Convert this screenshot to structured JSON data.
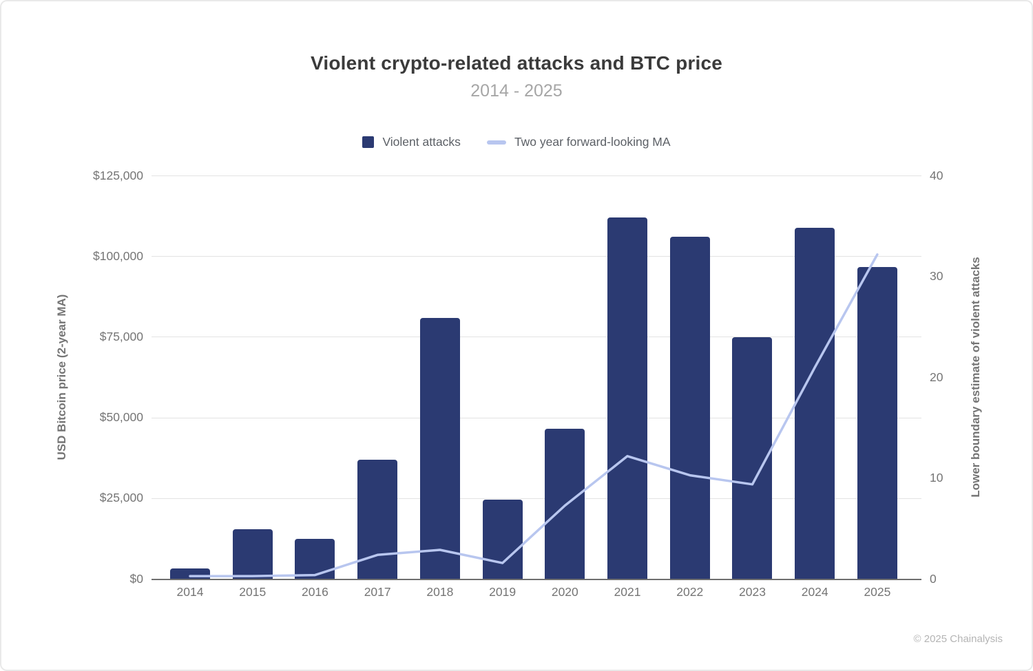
{
  "header": {
    "title": "Violent crypto-related attacks and BTC price",
    "subtitle": "2014 - 2025"
  },
  "legend": {
    "items": [
      {
        "label": "Violent attacks",
        "marker": "square",
        "color": "#2b3a72"
      },
      {
        "label": "Two year forward-looking MA",
        "marker": "line",
        "color": "#b8c6ef"
      }
    ]
  },
  "footer": {
    "copyright": "© 2025 Chainalysis"
  },
  "chart_data": {
    "type": "combo",
    "categories": [
      "2014",
      "2015",
      "2016",
      "2017",
      "2018",
      "2019",
      "2020",
      "2021",
      "2022",
      "2023",
      "2024",
      "2025"
    ],
    "series": [
      {
        "name": "Violent attacks",
        "type": "bar",
        "yaxis": "left",
        "color": "#2b3a72",
        "values": [
          3200,
          15400,
          12500,
          37000,
          81000,
          24600,
          46600,
          112200,
          106200,
          75000,
          109000,
          96800
        ]
      },
      {
        "name": "Two year forward-looking MA",
        "type": "line",
        "yaxis": "right",
        "color": "#b8c6ef",
        "values": [
          0.3,
          0.3,
          0.4,
          2.4,
          2.9,
          1.6,
          7.3,
          12.2,
          10.3,
          9.4,
          21,
          32.2
        ]
      }
    ],
    "left_axis": {
      "title": "USD Bitcoin price (2-year MA)",
      "range": [
        0,
        125000
      ],
      "ticks": [
        {
          "value": 0,
          "label": "$0"
        },
        {
          "value": 25000,
          "label": "$25,000"
        },
        {
          "value": 50000,
          "label": "$50,000"
        },
        {
          "value": 75000,
          "label": "$75,000"
        },
        {
          "value": 100000,
          "label": "$100,000"
        },
        {
          "value": 125000,
          "label": "$125,000"
        }
      ]
    },
    "right_axis": {
      "title": "Lower boundary estimate of violent attacks",
      "range": [
        0,
        40
      ],
      "ticks": [
        {
          "value": 0,
          "label": "0"
        },
        {
          "value": 10,
          "label": "10"
        },
        {
          "value": 20,
          "label": "20"
        },
        {
          "value": 30,
          "label": "30"
        },
        {
          "value": 40,
          "label": "40"
        }
      ]
    },
    "grid": true,
    "legend_position": "top",
    "colors": {
      "grid": "#e3e3e3",
      "baseline": "#6e6e6e",
      "tick_text": "#757575",
      "title_text": "#3b3b3b",
      "subtitle_text": "#a6a6a6"
    }
  }
}
